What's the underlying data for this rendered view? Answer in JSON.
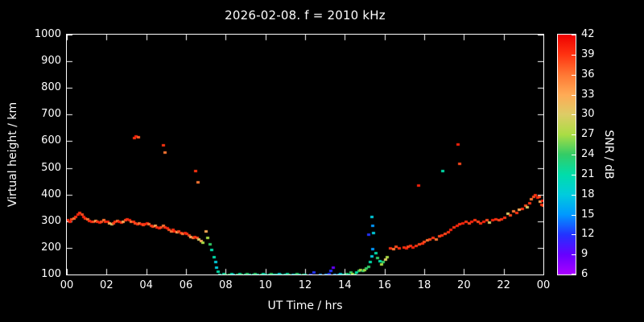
{
  "chart_data": {
    "type": "scatter",
    "title": "2026-02-08. f = 2010 kHz",
    "xlabel": "UT Time / hrs",
    "ylabel": "Virtual height / km",
    "colorbar_label": "SNR / dB",
    "background": "#000000",
    "foreground": "#ffffff",
    "xlim": [
      0,
      24
    ],
    "ylim": [
      100,
      1000
    ],
    "x_tick_step_hours": 2,
    "x_tick_labels": [
      "00",
      "02",
      "04",
      "06",
      "08",
      "10",
      "12",
      "14",
      "16",
      "18",
      "20",
      "22",
      "00"
    ],
    "y_tick_values": [
      100,
      200,
      300,
      400,
      500,
      600,
      700,
      800,
      900,
      1000
    ],
    "colorbar": {
      "min": 6,
      "max": 42,
      "tick_values": [
        6,
        9,
        12,
        15,
        18,
        21,
        24,
        27,
        30,
        33,
        36,
        39,
        42
      ],
      "stops": [
        {
          "value": 6,
          "color": "#aa00ff"
        },
        {
          "value": 9,
          "color": "#6600ff"
        },
        {
          "value": 12,
          "color": "#2233ff"
        },
        {
          "value": 15,
          "color": "#0099ff"
        },
        {
          "value": 18,
          "color": "#00ccdd"
        },
        {
          "value": 21,
          "color": "#00ddaa"
        },
        {
          "value": 24,
          "color": "#33cc66"
        },
        {
          "value": 27,
          "color": "#aadd44"
        },
        {
          "value": 30,
          "color": "#ddcc66"
        },
        {
          "value": 33,
          "color": "#ffaa55"
        },
        {
          "value": 36,
          "color": "#ff7733"
        },
        {
          "value": 39,
          "color": "#ff3311"
        },
        {
          "value": 42,
          "color": "#ee0000"
        }
      ]
    },
    "point_fields": [
      "ut_hours",
      "virtual_height_km",
      "snr_db"
    ],
    "points": [
      [
        0.05,
        305,
        39
      ],
      [
        0.15,
        300,
        40
      ],
      [
        0.25,
        308,
        38
      ],
      [
        0.35,
        312,
        36
      ],
      [
        0.45,
        318,
        39
      ],
      [
        0.55,
        328,
        40
      ],
      [
        0.65,
        333,
        39
      ],
      [
        0.75,
        328,
        38
      ],
      [
        0.85,
        318,
        40
      ],
      [
        0.95,
        312,
        39
      ],
      [
        1.05,
        308,
        36
      ],
      [
        1.15,
        303,
        39
      ],
      [
        1.25,
        300,
        40
      ],
      [
        1.35,
        298,
        38
      ],
      [
        1.45,
        303,
        33
      ],
      [
        1.55,
        300,
        39
      ],
      [
        1.65,
        296,
        40
      ],
      [
        1.75,
        300,
        38
      ],
      [
        1.85,
        304,
        36
      ],
      [
        1.95,
        300,
        39
      ],
      [
        2.05,
        298,
        40
      ],
      [
        2.15,
        294,
        33
      ],
      [
        2.25,
        291,
        30
      ],
      [
        2.35,
        294,
        38
      ],
      [
        2.45,
        299,
        39
      ],
      [
        2.55,
        303,
        36
      ],
      [
        2.65,
        299,
        40
      ],
      [
        2.75,
        295,
        39
      ],
      [
        2.85,
        299,
        33
      ],
      [
        2.95,
        304,
        38
      ],
      [
        3.05,
        308,
        39
      ],
      [
        3.15,
        304,
        40
      ],
      [
        3.25,
        300,
        36
      ],
      [
        3.35,
        299,
        39
      ],
      [
        3.45,
        294,
        38
      ],
      [
        3.4,
        612,
        39
      ],
      [
        3.5,
        620,
        40
      ],
      [
        3.6,
        616,
        37
      ],
      [
        3.55,
        290,
        39
      ],
      [
        3.65,
        294,
        36
      ],
      [
        3.75,
        290,
        40
      ],
      [
        3.85,
        286,
        38
      ],
      [
        3.95,
        289,
        39
      ],
      [
        4.05,
        293,
        40
      ],
      [
        4.15,
        289,
        36
      ],
      [
        4.25,
        284,
        39
      ],
      [
        4.35,
        280,
        38
      ],
      [
        4.45,
        284,
        33
      ],
      [
        4.55,
        279,
        39
      ],
      [
        4.65,
        275,
        40
      ],
      [
        4.75,
        279,
        38
      ],
      [
        4.85,
        284,
        36
      ],
      [
        4.95,
        279,
        39
      ],
      [
        4.85,
        585,
        39
      ],
      [
        4.95,
        558,
        36
      ],
      [
        5.05,
        274,
        40
      ],
      [
        5.15,
        269,
        38
      ],
      [
        5.25,
        264,
        36
      ],
      [
        5.35,
        269,
        39
      ],
      [
        5.45,
        264,
        40
      ],
      [
        5.55,
        259,
        33
      ],
      [
        5.65,
        263,
        38
      ],
      [
        5.75,
        258,
        39
      ],
      [
        5.85,
        254,
        36
      ],
      [
        5.95,
        258,
        40
      ],
      [
        6.05,
        253,
        39
      ],
      [
        6.15,
        248,
        38
      ],
      [
        6.25,
        243,
        33
      ],
      [
        6.35,
        238,
        36
      ],
      [
        6.45,
        243,
        39
      ],
      [
        6.5,
        490,
        39
      ],
      [
        6.6,
        446,
        36
      ],
      [
        6.55,
        238,
        38
      ],
      [
        6.65,
        232,
        30
      ],
      [
        6.75,
        228,
        33
      ],
      [
        6.85,
        222,
        27
      ],
      [
        7.0,
        262,
        33
      ],
      [
        7.1,
        238,
        27
      ],
      [
        7.2,
        214,
        24
      ],
      [
        7.3,
        193,
        21
      ],
      [
        7.4,
        166,
        21
      ],
      [
        7.5,
        148,
        18
      ],
      [
        7.55,
        128,
        18
      ],
      [
        7.62,
        112,
        21
      ],
      [
        7.7,
        100,
        21
      ],
      [
        7.8,
        98,
        24
      ],
      [
        7.9,
        103,
        21
      ],
      [
        8.0,
        100,
        24
      ],
      [
        8.1,
        98,
        21
      ],
      [
        8.2,
        100,
        24
      ],
      [
        8.3,
        102,
        21
      ],
      [
        8.4,
        100,
        18
      ],
      [
        8.5,
        98,
        21
      ],
      [
        8.6,
        100,
        24
      ],
      [
        8.7,
        102,
        21
      ],
      [
        8.8,
        100,
        24
      ],
      [
        8.9,
        98,
        21
      ],
      [
        9.0,
        100,
        21
      ],
      [
        9.1,
        102,
        24
      ],
      [
        9.2,
        100,
        21
      ],
      [
        9.3,
        98,
        18
      ],
      [
        9.4,
        100,
        21
      ],
      [
        9.5,
        102,
        24
      ],
      [
        9.6,
        100,
        21
      ],
      [
        9.7,
        98,
        21
      ],
      [
        9.8,
        100,
        24
      ],
      [
        9.9,
        102,
        21
      ],
      [
        10.0,
        100,
        21
      ],
      [
        10.1,
        98,
        18
      ],
      [
        10.2,
        100,
        21
      ],
      [
        10.3,
        102,
        24
      ],
      [
        10.4,
        100,
        21
      ],
      [
        10.5,
        98,
        24
      ],
      [
        10.6,
        100,
        21
      ],
      [
        10.7,
        102,
        18
      ],
      [
        10.8,
        100,
        21
      ],
      [
        10.9,
        98,
        24
      ],
      [
        11.0,
        100,
        21
      ],
      [
        11.1,
        102,
        21
      ],
      [
        11.2,
        100,
        24
      ],
      [
        11.3,
        98,
        21
      ],
      [
        11.4,
        100,
        18
      ],
      [
        11.5,
        100,
        21
      ],
      [
        11.6,
        102,
        24
      ],
      [
        11.7,
        100,
        21
      ],
      [
        11.8,
        98,
        21
      ],
      [
        11.9,
        100,
        24
      ],
      [
        12.0,
        100,
        21
      ],
      [
        12.1,
        98,
        18
      ],
      [
        12.3,
        100,
        12
      ],
      [
        12.45,
        108,
        12
      ],
      [
        12.6,
        96,
        15
      ],
      [
        12.75,
        100,
        15
      ],
      [
        12.9,
        98,
        18
      ],
      [
        13.05,
        100,
        15
      ],
      [
        13.2,
        104,
        12
      ],
      [
        13.3,
        116,
        12
      ],
      [
        13.4,
        128,
        9
      ],
      [
        13.5,
        100,
        15
      ],
      [
        13.6,
        98,
        15
      ],
      [
        13.7,
        100,
        18
      ],
      [
        13.8,
        102,
        18
      ],
      [
        13.9,
        100,
        21
      ],
      [
        14.0,
        98,
        21
      ],
      [
        14.1,
        103,
        24
      ],
      [
        14.2,
        100,
        21
      ],
      [
        14.3,
        108,
        24
      ],
      [
        14.4,
        104,
        27
      ],
      [
        14.5,
        100,
        24
      ],
      [
        14.6,
        108,
        21
      ],
      [
        14.7,
        114,
        24
      ],
      [
        14.8,
        119,
        27
      ],
      [
        14.9,
        114,
        24
      ],
      [
        15.0,
        119,
        27
      ],
      [
        15.1,
        124,
        24
      ],
      [
        15.2,
        129,
        24
      ],
      [
        15.2,
        250,
        12
      ],
      [
        15.3,
        148,
        21
      ],
      [
        15.35,
        318,
        18
      ],
      [
        15.4,
        284,
        15
      ],
      [
        15.45,
        258,
        18
      ],
      [
        15.4,
        198,
        15
      ],
      [
        15.35,
        170,
        18
      ],
      [
        15.55,
        182,
        21
      ],
      [
        15.65,
        162,
        24
      ],
      [
        15.75,
        150,
        21
      ],
      [
        15.85,
        140,
        27
      ],
      [
        15.95,
        148,
        24
      ],
      [
        16.05,
        158,
        30
      ],
      [
        16.15,
        166,
        27
      ],
      [
        16.35,
        94,
        33
      ],
      [
        16.3,
        200,
        39
      ],
      [
        16.45,
        196,
        36
      ],
      [
        16.6,
        206,
        38
      ],
      [
        16.75,
        200,
        39
      ],
      [
        17.0,
        204,
        39
      ],
      [
        17.1,
        200,
        40
      ],
      [
        17.2,
        205,
        38
      ],
      [
        17.3,
        209,
        39
      ],
      [
        17.45,
        204,
        40
      ],
      [
        17.6,
        209,
        39
      ],
      [
        17.7,
        435,
        40
      ],
      [
        17.75,
        214,
        38
      ],
      [
        17.9,
        219,
        39
      ],
      [
        18.0,
        224,
        38
      ],
      [
        18.15,
        229,
        36
      ],
      [
        18.3,
        234,
        38
      ],
      [
        18.45,
        239,
        39
      ],
      [
        18.6,
        234,
        36
      ],
      [
        18.75,
        244,
        38
      ],
      [
        18.9,
        249,
        39
      ],
      [
        18.95,
        490,
        21
      ],
      [
        19.05,
        254,
        38
      ],
      [
        19.2,
        259,
        39
      ],
      [
        19.35,
        269,
        40
      ],
      [
        19.5,
        279,
        39
      ],
      [
        19.65,
        284,
        40
      ],
      [
        19.7,
        588,
        40
      ],
      [
        19.8,
        518,
        38
      ],
      [
        19.8,
        289,
        39
      ],
      [
        19.95,
        294,
        40
      ],
      [
        20.1,
        299,
        39
      ],
      [
        20.25,
        294,
        38
      ],
      [
        20.4,
        299,
        40
      ],
      [
        20.55,
        304,
        39
      ],
      [
        20.7,
        299,
        38
      ],
      [
        20.85,
        294,
        39
      ],
      [
        21.0,
        299,
        40
      ],
      [
        21.15,
        304,
        38
      ],
      [
        21.3,
        296,
        30
      ],
      [
        21.45,
        304,
        40
      ],
      [
        21.6,
        309,
        39
      ],
      [
        21.75,
        304,
        38
      ],
      [
        21.9,
        309,
        39
      ],
      [
        22.05,
        314,
        39
      ],
      [
        22.2,
        330,
        30
      ],
      [
        22.35,
        324,
        38
      ],
      [
        22.5,
        339,
        36
      ],
      [
        22.65,
        334,
        39
      ],
      [
        22.8,
        344,
        33
      ],
      [
        22.95,
        349,
        39
      ],
      [
        23.1,
        359,
        38
      ],
      [
        23.2,
        354,
        30
      ],
      [
        23.3,
        369,
        39
      ],
      [
        23.4,
        384,
        36
      ],
      [
        23.5,
        394,
        38
      ],
      [
        23.6,
        399,
        39
      ],
      [
        23.7,
        389,
        40
      ],
      [
        23.8,
        394,
        38
      ],
      [
        23.85,
        374,
        33
      ],
      [
        23.9,
        364,
        39
      ],
      [
        23.95,
        379,
        40
      ],
      [
        24.0,
        359,
        38
      ]
    ]
  }
}
